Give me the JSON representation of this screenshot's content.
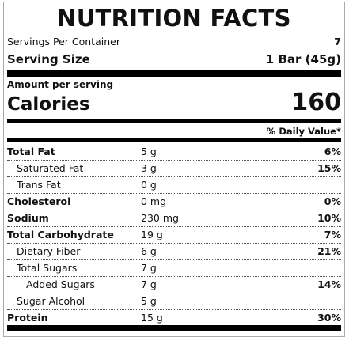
{
  "label": {
    "title": "NUTRITION FACTS",
    "servings_label": "Servings Per Container",
    "servings_value": "7",
    "serving_size_label": "Serving Size",
    "serving_size_value": "1 Bar (45g)",
    "amount_per_serving": "Amount per serving",
    "calories_label": "Calories",
    "calories_value": "160",
    "daily_value_header": "% Daily Value*"
  },
  "nutrients": [
    {
      "name": "Total Fat",
      "amount": "5 g",
      "dv": "6%",
      "bold": true,
      "indent": 0
    },
    {
      "name": "Saturated Fat",
      "amount": "3 g",
      "dv": "15%",
      "bold": false,
      "indent": 1
    },
    {
      "name": "Trans Fat",
      "amount": "0 g",
      "dv": "",
      "bold": false,
      "indent": 1
    },
    {
      "name": "Cholesterol",
      "amount": "0 mg",
      "dv": "0%",
      "bold": true,
      "indent": 0
    },
    {
      "name": "Sodium",
      "amount": "230 mg",
      "dv": "10%",
      "bold": true,
      "indent": 0
    },
    {
      "name": "Total Carbohydrate",
      "amount": "19 g",
      "dv": "7%",
      "bold": true,
      "indent": 0
    },
    {
      "name": "Dietary Fiber",
      "amount": "6 g",
      "dv": "21%",
      "bold": false,
      "indent": 1
    },
    {
      "name": "Total Sugars",
      "amount": "7 g",
      "dv": "",
      "bold": false,
      "indent": 1
    },
    {
      "name": "Added Sugars",
      "amount": "7 g",
      "dv": "14%",
      "bold": false,
      "indent": 2
    },
    {
      "name": "Sugar Alcohol",
      "amount": "5 g",
      "dv": "",
      "bold": false,
      "indent": 1
    },
    {
      "name": "Protein",
      "amount": "15 g",
      "dv": "30%",
      "bold": true,
      "indent": 0
    }
  ]
}
